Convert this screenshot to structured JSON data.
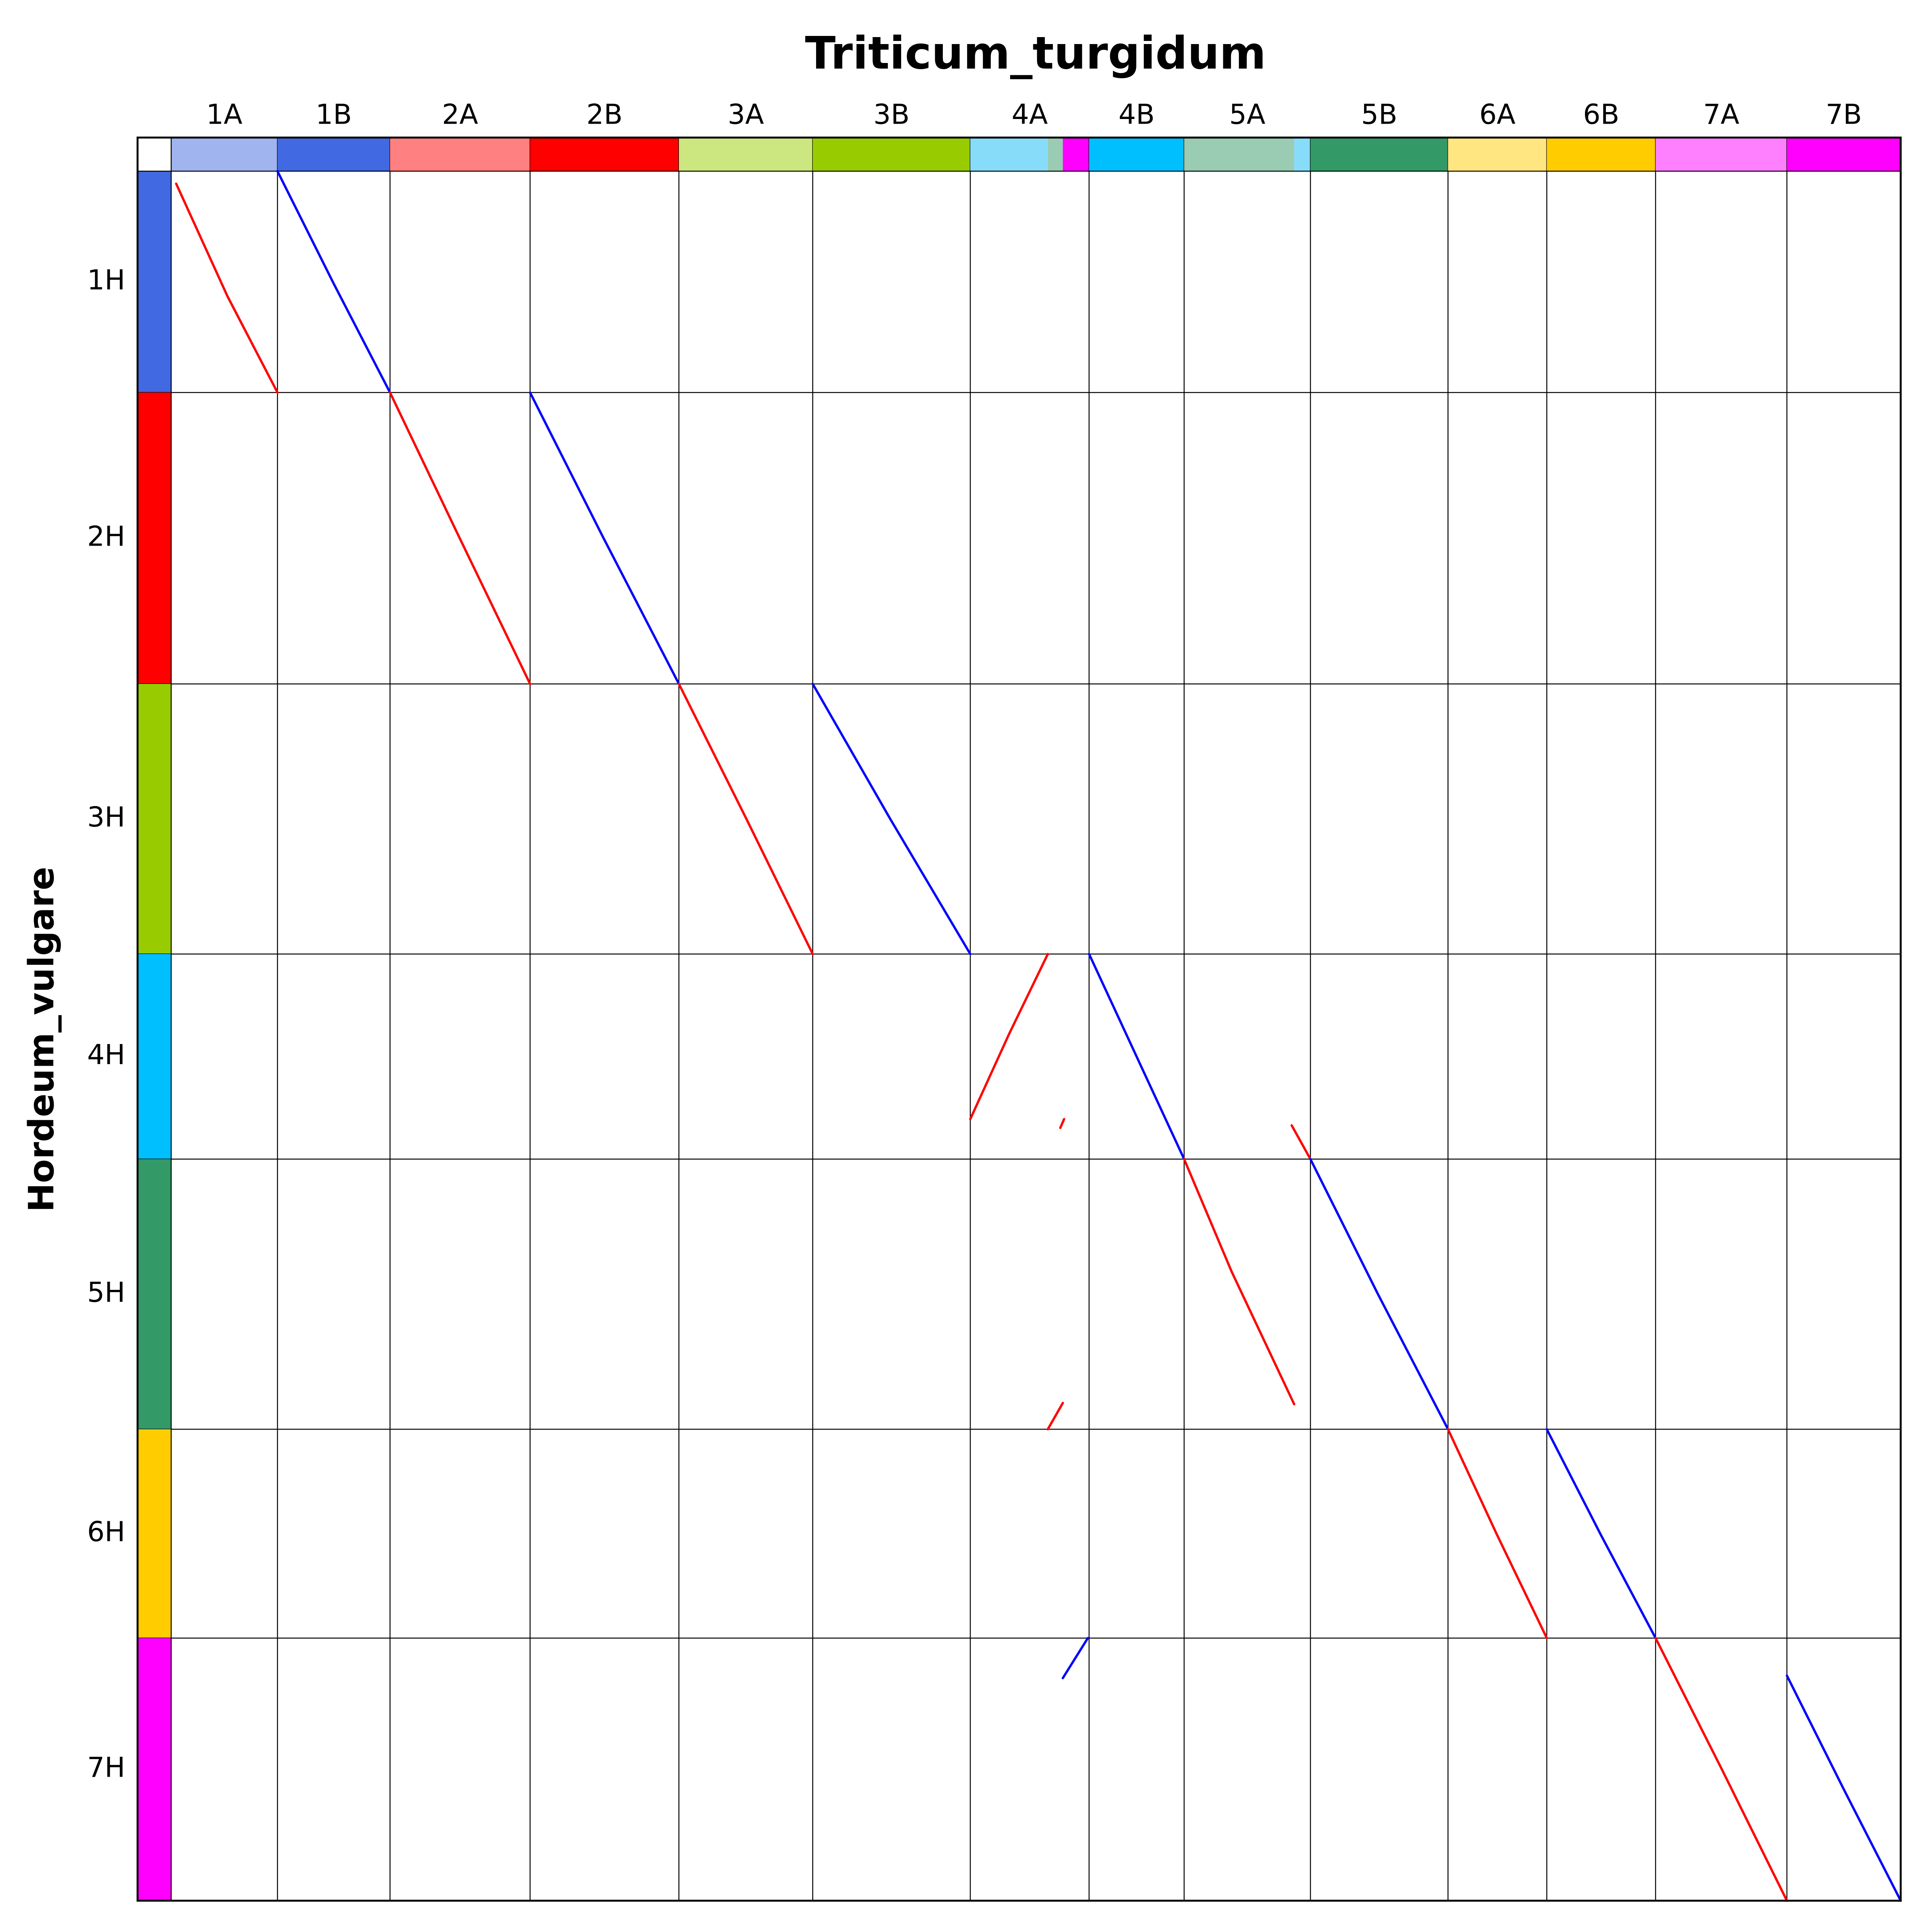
{
  "chart_data": {
    "type": "dotplot",
    "title": "Triticum_turgidum",
    "y_label": "Hordeum_vulgare",
    "x_chromosomes": [
      {
        "name": "1A",
        "length": 85,
        "bands": [
          {
            "color": "#a0b4f0",
            "length": 85
          }
        ]
      },
      {
        "name": "1B",
        "length": 90,
        "bands": [
          {
            "color": "#4169e1",
            "length": 90
          }
        ]
      },
      {
        "name": "2A",
        "length": 112,
        "bands": [
          {
            "color": "#ff8080",
            "length": 112
          }
        ]
      },
      {
        "name": "2B",
        "length": 119,
        "bands": [
          {
            "color": "#ff0000",
            "length": 119
          }
        ]
      },
      {
        "name": "3A",
        "length": 107,
        "bands": [
          {
            "color": "#cce680",
            "length": 107
          }
        ]
      },
      {
        "name": "3B",
        "length": 126,
        "bands": [
          {
            "color": "#99cc00",
            "length": 126
          }
        ]
      },
      {
        "name": "4A",
        "length": 95,
        "bands": [
          {
            "color": "#87dcfa",
            "length": 62
          },
          {
            "color": "#99ccb3",
            "length": 12
          },
          {
            "color": "#ff00ff",
            "length": 21
          }
        ]
      },
      {
        "name": "4B",
        "length": 76,
        "bands": [
          {
            "color": "#00bfff",
            "length": 76
          }
        ]
      },
      {
        "name": "5A",
        "length": 101,
        "bands": [
          {
            "color": "#99ccb3",
            "length": 88
          },
          {
            "color": "#87dcfa",
            "length": 13
          }
        ]
      },
      {
        "name": "5B",
        "length": 110,
        "bands": [
          {
            "color": "#339966",
            "length": 110
          }
        ]
      },
      {
        "name": "6A",
        "length": 79,
        "bands": [
          {
            "color": "#ffe680",
            "length": 79
          }
        ]
      },
      {
        "name": "6B",
        "length": 87,
        "bands": [
          {
            "color": "#ffcc00",
            "length": 87
          }
        ]
      },
      {
        "name": "7A",
        "length": 105,
        "bands": [
          {
            "color": "#ff80ff",
            "length": 105
          }
        ]
      },
      {
        "name": "7B",
        "length": 91,
        "bands": [
          {
            "color": "#ff00ff",
            "length": 91
          }
        ]
      }
    ],
    "y_chromosomes": [
      {
        "name": "1H",
        "length": 177,
        "color": "#4169e1"
      },
      {
        "name": "2H",
        "length": 233,
        "color": "#ff0000"
      },
      {
        "name": "3H",
        "length": 216,
        "color": "#99cc00"
      },
      {
        "name": "4H",
        "length": 164,
        "color": "#00bfff"
      },
      {
        "name": "5H",
        "length": 216,
        "color": "#339966"
      },
      {
        "name": "6H",
        "length": 167,
        "color": "#ffcc00"
      },
      {
        "name": "7H",
        "length": 210,
        "color": "#ff00ff"
      }
    ],
    "xlim": [
      0,
      1383
    ],
    "ylim": [
      0,
      1383
    ],
    "series": [
      {
        "color": "#ff0000",
        "x": [
          4,
          45,
          85
        ],
        "y": [
          10,
          100,
          177
        ]
      },
      {
        "color": "#0000ff",
        "x": [
          85,
          130,
          175
        ],
        "y": [
          0,
          90,
          177
        ]
      },
      {
        "color": "#ff0000",
        "x": [
          175,
          230,
          287
        ],
        "y": [
          177,
          292,
          410
        ]
      },
      {
        "color": "#0000ff",
        "x": [
          287,
          345,
          406
        ],
        "y": [
          177,
          292,
          410
        ]
      },
      {
        "color": "#ff0000",
        "x": [
          406,
          460,
          513
        ],
        "y": [
          410,
          518,
          626
        ]
      },
      {
        "color": "#0000ff",
        "x": [
          513,
          575,
          639
        ],
        "y": [
          410,
          518,
          626
        ]
      },
      {
        "color": "#ff0000",
        "x": [
          639,
          670,
          701
        ],
        "y": [
          758,
          690,
          626
        ]
      },
      {
        "color": "#ff0000",
        "x": [
          711,
          714
        ],
        "y": [
          765,
          758
        ]
      },
      {
        "color": "#0000ff",
        "x": [
          734,
          772,
          810
        ],
        "y": [
          626,
          708,
          790
        ]
      },
      {
        "color": "#ff0000",
        "x": [
          810,
          848,
          898
        ],
        "y": [
          790,
          880,
          986
        ]
      },
      {
        "color": "#ff0000",
        "x": [
          896,
          911
        ],
        "y": [
          763,
          790
        ]
      },
      {
        "color": "#0000ff",
        "x": [
          911,
          965,
          1021
        ],
        "y": [
          790,
          898,
          1006
        ]
      },
      {
        "color": "#ff0000",
        "x": [
          701,
          713
        ],
        "y": [
          1006,
          985
        ]
      },
      {
        "color": "#ff0000",
        "x": [
          1021,
          1060,
          1100
        ],
        "y": [
          1006,
          1090,
          1173
        ]
      },
      {
        "color": "#0000ff",
        "x": [
          1100,
          1143,
          1187
        ],
        "y": [
          1006,
          1090,
          1173
        ]
      },
      {
        "color": "#0000ff",
        "x": [
          713,
          733
        ],
        "y": [
          1205,
          1173
        ]
      },
      {
        "color": "#ff0000",
        "x": [
          1187,
          1240,
          1292
        ],
        "y": [
          1173,
          1278,
          1383
        ]
      },
      {
        "color": "#0000ff",
        "x": [
          1292,
          1337,
          1383
        ],
        "y": [
          1203,
          1293,
          1383
        ]
      }
    ]
  }
}
